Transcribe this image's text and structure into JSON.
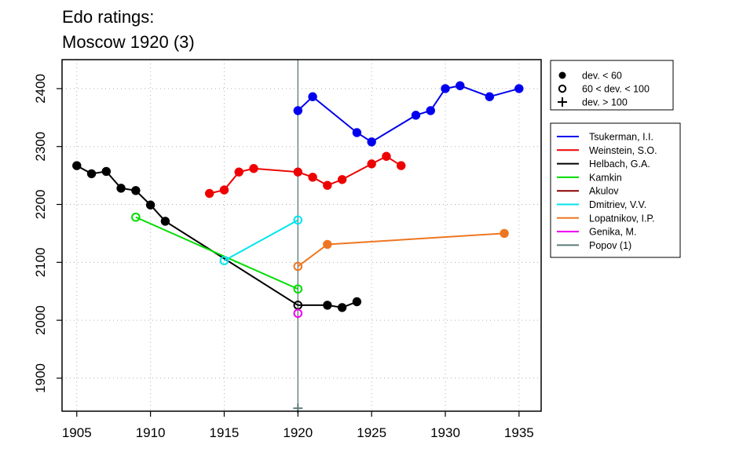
{
  "title_line1": "Edo ratings:",
  "title_line2": "Moscow 1920 (3)",
  "chart_data": {
    "type": "line",
    "title": "Edo ratings: Moscow 1920 (3)",
    "xlabel": "",
    "ylabel": "",
    "xlim": [
      1904,
      1936.5
    ],
    "ylim": [
      1843,
      2450
    ],
    "xticks": [
      1905,
      1910,
      1915,
      1920,
      1925,
      1930,
      1935
    ],
    "yticks": [
      1900,
      2000,
      2100,
      2200,
      2300,
      2400
    ],
    "grid": true,
    "vline_x": 1920,
    "marker_legend": [
      {
        "symbol": "filled-circle",
        "label": "dev. < 60"
      },
      {
        "symbol": "open-circle",
        "label": "60 < dev. < 100"
      },
      {
        "symbol": "plus",
        "label": "dev. > 100"
      }
    ],
    "series": [
      {
        "name": "Tsukerman, I.I.",
        "color": "#0000ee",
        "points": [
          [
            1920,
            2362,
            "filled"
          ],
          [
            1921,
            2386,
            "filled"
          ],
          [
            1924,
            2324,
            "filled"
          ],
          [
            1925,
            2308,
            "filled"
          ],
          [
            1928,
            2354,
            "filled"
          ],
          [
            1929,
            2362,
            "filled"
          ],
          [
            1930,
            2400,
            "filled"
          ],
          [
            1931,
            2405,
            "filled"
          ],
          [
            1933,
            2386,
            "filled"
          ],
          [
            1935,
            2400,
            "filled"
          ]
        ]
      },
      {
        "name": "Weinstein, S.O.",
        "color": "#ee0000",
        "points": [
          [
            1914,
            2219,
            "filled"
          ],
          [
            1915,
            2225,
            "filled"
          ],
          [
            1916,
            2256,
            "filled"
          ],
          [
            1917,
            2262,
            "filled"
          ],
          [
            1920,
            2256,
            "filled"
          ],
          [
            1921,
            2247,
            "filled"
          ],
          [
            1922,
            2233,
            "filled"
          ],
          [
            1923,
            2243,
            "filled"
          ],
          [
            1925,
            2270,
            "filled"
          ],
          [
            1926,
            2283,
            "filled"
          ],
          [
            1927,
            2267,
            "filled"
          ]
        ]
      },
      {
        "name": "Helbach, G.A.",
        "color": "#000000",
        "points": [
          [
            1905,
            2267,
            "filled"
          ],
          [
            1906,
            2253,
            "filled"
          ],
          [
            1907,
            2257,
            "filled"
          ],
          [
            1908,
            2228,
            "filled"
          ],
          [
            1909,
            2224,
            "filled"
          ],
          [
            1910,
            2199,
            "filled"
          ],
          [
            1911,
            2171,
            "filled"
          ],
          [
            1920,
            2026,
            "open"
          ],
          [
            1922,
            2026,
            "filled"
          ],
          [
            1923,
            2022,
            "filled"
          ],
          [
            1924,
            2032,
            "filled"
          ]
        ]
      },
      {
        "name": "Kamkin",
        "color": "#00dd00",
        "points": [
          [
            1909,
            2178,
            "open"
          ],
          [
            1920,
            2054,
            "open"
          ]
        ]
      },
      {
        "name": "Akulov",
        "color": "#8b0000",
        "points": []
      },
      {
        "name": "Dmitriev, V.V.",
        "color": "#00e5ee",
        "points": [
          [
            1915,
            2103,
            "open"
          ],
          [
            1920,
            2173,
            "open"
          ]
        ]
      },
      {
        "name": "Lopatnikov, I.P.",
        "color": "#ee7621",
        "points": [
          [
            1920,
            2093,
            "open"
          ],
          [
            1922,
            2131,
            "filled"
          ],
          [
            1934,
            2150,
            "filled"
          ]
        ]
      },
      {
        "name": "Genika, M.",
        "color": "#ee00ee",
        "points": [
          [
            1920,
            2012,
            "open"
          ]
        ]
      },
      {
        "name": "Popov (1)",
        "color": "#5b7b7a",
        "points": [
          [
            1920,
            1848,
            "plus"
          ]
        ]
      }
    ]
  }
}
